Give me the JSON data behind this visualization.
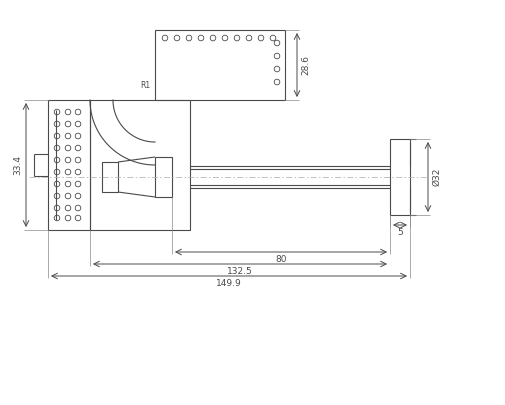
{
  "bg_color": "#ffffff",
  "line_color": "#4a4a4a",
  "dim_color": "#4a4a4a",
  "dim_33_4": "33.4",
  "dim_28_6": "28.6",
  "dim_80": "80",
  "dim_132_5": "132.5",
  "dim_149_9": "149.9",
  "dim_32": "Ø32",
  "dim_5": "5",
  "label_R1": "R1"
}
